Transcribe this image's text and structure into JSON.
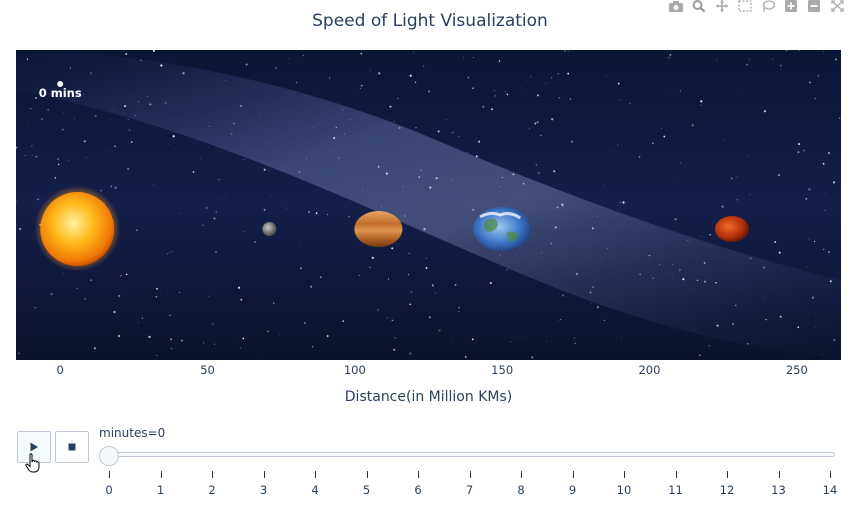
{
  "modebar": {
    "icons": [
      "camera-icon",
      "zoom-icon",
      "pan-icon",
      "box-select-icon",
      "lasso-icon",
      "zoom-in-icon",
      "zoom-out-icon",
      "autoscale-icon"
    ]
  },
  "chart_data": {
    "type": "scatter",
    "title": "Speed of Light Visualization",
    "xlabel": "Distance(in Million KMs)",
    "ylabel": "",
    "xlim": [
      -15,
      265
    ],
    "x_ticks": [
      "0",
      "50",
      "100",
      "150",
      "200",
      "250"
    ],
    "x_tick_values": [
      0,
      50,
      100,
      150,
      200,
      250
    ],
    "y_axis_visible": false,
    "grid": false,
    "background": "starry space image",
    "marker": {
      "x": 0,
      "y": 1,
      "text": "0 mins",
      "color": "#ffffff"
    },
    "bodies": [
      {
        "x": 5.8,
        "icon": "sun-icon",
        "color": "#ff9a14"
      },
      {
        "x": 71,
        "icon": "mercury-icon",
        "color": "#8a8a8a"
      },
      {
        "x": 108,
        "icon": "venus-icon",
        "color": "#c5762e"
      },
      {
        "x": 150,
        "icon": "earth-icon",
        "color": "#3f76c8"
      },
      {
        "x": 228,
        "icon": "mars-icon",
        "color": "#c43a12"
      }
    ]
  },
  "slider": {
    "label": "minutes=0",
    "value": 0,
    "min": 0,
    "max": 14,
    "ticks": [
      "0",
      "1",
      "2",
      "3",
      "4",
      "5",
      "6",
      "7",
      "8",
      "9",
      "10",
      "11",
      "12",
      "13",
      "14"
    ]
  },
  "controls": {
    "play_icon": "play-icon",
    "stop_icon": "stop-icon"
  }
}
